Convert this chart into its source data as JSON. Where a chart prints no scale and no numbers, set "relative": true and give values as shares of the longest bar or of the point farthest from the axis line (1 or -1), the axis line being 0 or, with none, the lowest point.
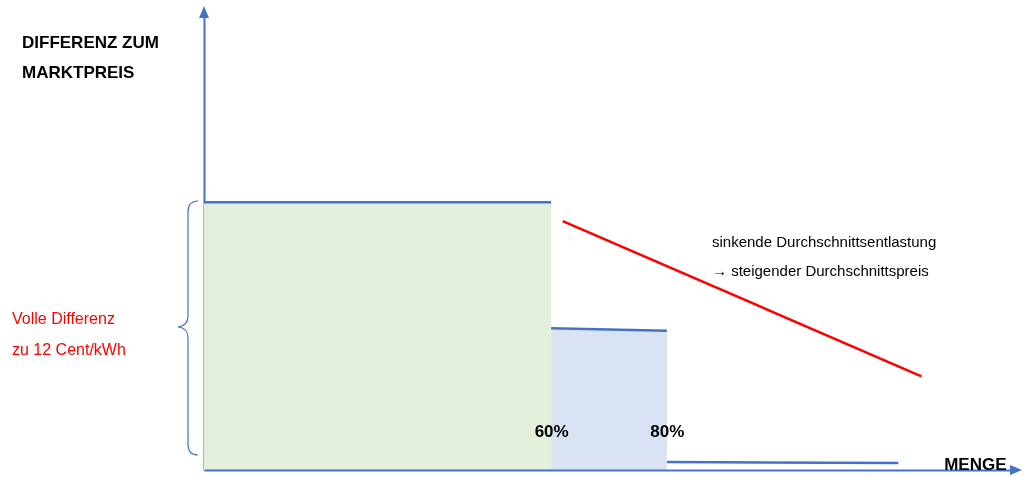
{
  "chart_data": {
    "type": "area",
    "relative": true,
    "xlabel": "MENGE",
    "xlim": [
      0,
      140
    ],
    "xticks": [
      {
        "value": 60,
        "label": "60%"
      },
      {
        "value": 80,
        "label": "80%"
      }
    ],
    "tick_labels": "x",
    "grid": false,
    "annotations": [
      "DIFFERENZ ZUM\nMARKTPREIS",
      "Volle Differenz\nzu 12 Cent/kWh",
      "sinkende Durchschnittsentlastung\n→ steigender Durchschnittspreis"
    ],
    "series": [
      {
        "color": "#e2efda",
        "x": [
          0,
          60
        ],
        "values": [
          1,
          1
        ]
      },
      {
        "color": "#dae3f3",
        "x": [
          60,
          80
        ],
        "values": [
          0.53,
          0.52
        ]
      },
      {
        "type": "line",
        "color": "#4472c4",
        "x": [
          80,
          120
        ],
        "values": [
          0.03,
          0.026
        ]
      },
      {
        "type": "line",
        "color": "#ff0000",
        "x": [
          62,
          124
        ],
        "values": [
          0.93,
          0.35
        ]
      }
    ]
  }
}
